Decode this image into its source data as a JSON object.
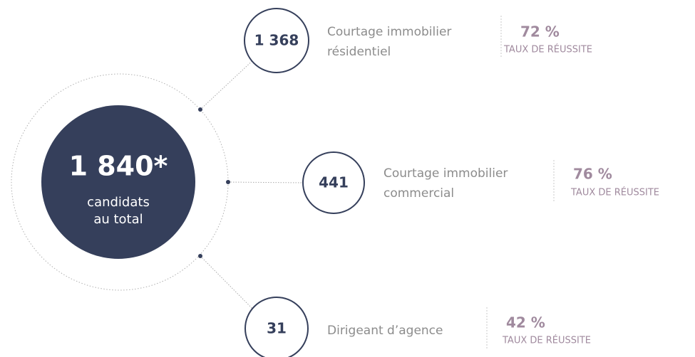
{
  "center": {
    "value": "1 840*",
    "label": [
      "candidats",
      "au total"
    ]
  },
  "items": [
    {
      "count": "1 368",
      "label": [
        "Courtage immobilier",
        "résidentiel"
      ],
      "rate": "72 %",
      "rate_label": "TAUX DE RÉUSSITE"
    },
    {
      "count": "441",
      "label": [
        "Courtage immobilier",
        "commercial"
      ],
      "rate": "76 %",
      "rate_label": "TAUX DE RÉUSSITE"
    },
    {
      "count": "31",
      "label": [
        "Dirigeant d’agence"
      ],
      "rate": "42 %",
      "rate_label": "TAUX DE RÉUSSITE"
    }
  ]
}
